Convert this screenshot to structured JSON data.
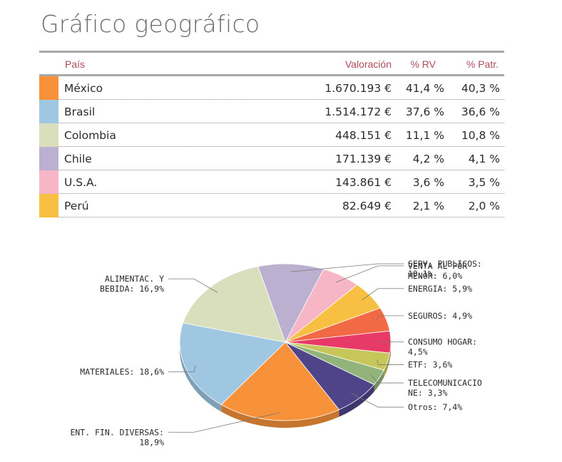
{
  "title": "Gráfico geográfico",
  "table": {
    "headers": {
      "country": "País",
      "value": "Valoración",
      "rv": "% RV",
      "pat": "% Patr."
    },
    "rows": [
      {
        "country": "México",
        "value": "1.670.193 €",
        "rv": "41,4 %",
        "pat": "40,3 %",
        "color": "#f7923a"
      },
      {
        "country": "Brasil",
        "value": "1.514.172 €",
        "rv": "37,6 %",
        "pat": "36,6 %",
        "color": "#9fc7e2"
      },
      {
        "country": "Colombia",
        "value": "448.151 €",
        "rv": "11,1 %",
        "pat": "10,8 %",
        "color": "#d9dfbd"
      },
      {
        "country": "Chile",
        "value": "171.139 €",
        "rv": "4,2 %",
        "pat": "4,1 %",
        "color": "#bcb0d0"
      },
      {
        "country": "U.S.A.",
        "value": "143.861 €",
        "rv": "3,6 %",
        "pat": "3,5 %",
        "color": "#f6b6c6"
      },
      {
        "country": "Perú",
        "value": "82.649 €",
        "rv": "2,1 %",
        "pat": "2,0 %",
        "color": "#f8c042"
      }
    ]
  },
  "chart_data": {
    "type": "pie",
    "title": "",
    "slices": [
      {
        "name": "SERV. PUBLICOS",
        "value": 10.1,
        "label_lines": [
          "SERV. PUBLICOS:",
          "10,1%"
        ],
        "color": "#bcb0d0"
      },
      {
        "name": "VENTA AL POR MENOR",
        "value": 6.0,
        "label_lines": [
          "VENTA AL POR",
          "MENOR: 6,0%"
        ],
        "color": "#f6b6c6"
      },
      {
        "name": "ENERGIA",
        "value": 5.9,
        "label_lines": [
          "ENERGIA: 5,9%"
        ],
        "color": "#f8c042"
      },
      {
        "name": "SEGUROS",
        "value": 4.9,
        "label_lines": [
          "SEGUROS: 4,9%"
        ],
        "color": "#f26a45"
      },
      {
        "name": "CONSUMO HOGAR",
        "value": 4.5,
        "label_lines": [
          "CONSUMO HOGAR:",
          "4,5%"
        ],
        "color": "#e83a66"
      },
      {
        "name": "ETF",
        "value": 3.6,
        "label_lines": [
          "ETF: 3,6%"
        ],
        "color": "#c7c65b"
      },
      {
        "name": "TELECOMUNICACIONE",
        "value": 3.3,
        "label_lines": [
          "TELECOMUNICACIO",
          "NE: 3,3%"
        ],
        "color": "#92b47a"
      },
      {
        "name": "Otros",
        "value": 7.4,
        "label_lines": [
          "Otros: 7,4%"
        ],
        "color": "#4f4389"
      },
      {
        "name": "ENT. FIN. DIVERSAS",
        "value": 18.9,
        "label_lines": [
          "ENT. FIN. DIVERSAS:",
          "18,9%"
        ],
        "color": "#f7923a"
      },
      {
        "name": "MATERIALES",
        "value": 18.6,
        "label_lines": [
          "MATERIALES: 18,6%"
        ],
        "color": "#9fc7e2"
      },
      {
        "name": "ALIMENTAC. Y BEBIDA",
        "value": 16.9,
        "label_lines": [
          "ALIMENTAC. Y",
          "BEBIDA: 16,9%"
        ],
        "color": "#d9dfbd"
      }
    ]
  }
}
